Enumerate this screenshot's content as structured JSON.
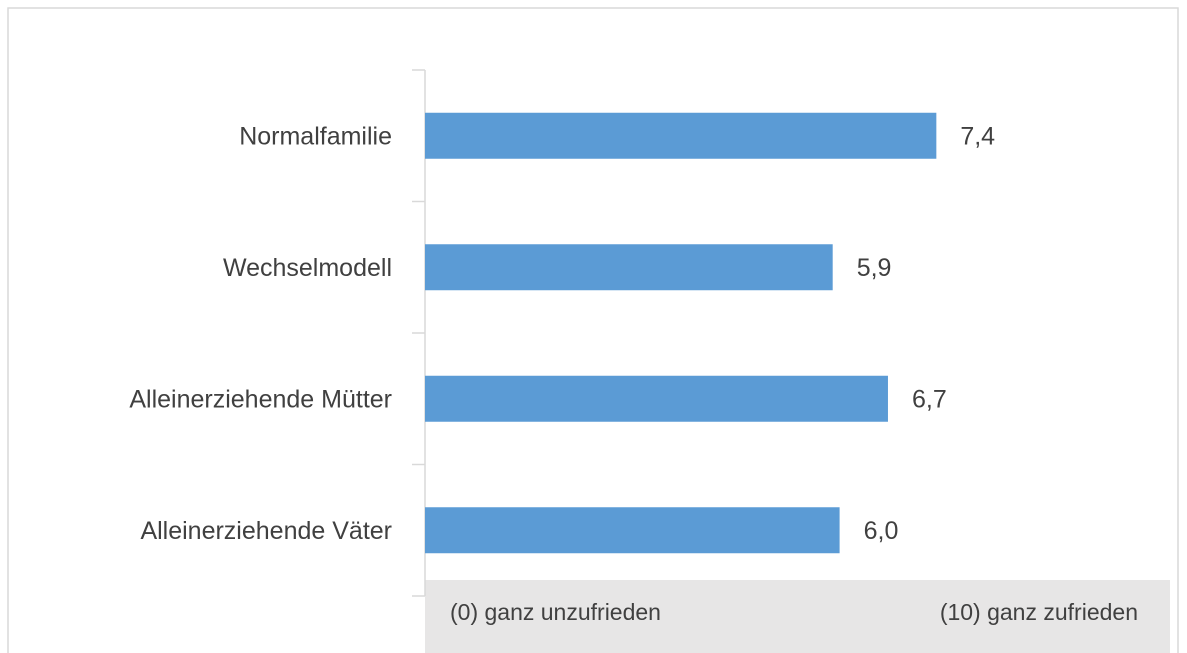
{
  "chart_data": {
    "type": "bar",
    "orientation": "horizontal",
    "categories": [
      "Normalfamilie",
      "Wechselmodell",
      "Alleinerziehende Mütter",
      "Alleinerziehende Väter"
    ],
    "values": [
      7.4,
      5.9,
      6.7,
      6.0
    ],
    "value_labels": [
      "7,4",
      "5,9",
      "6,7",
      "6,0"
    ],
    "color": "#5b9bd5",
    "xlim": [
      0,
      10
    ],
    "xticks": [
      {
        "value": 0,
        "label": "(0) ganz unzufrieden"
      },
      {
        "value": 10,
        "label": "(10) ganz zufrieden"
      }
    ]
  }
}
